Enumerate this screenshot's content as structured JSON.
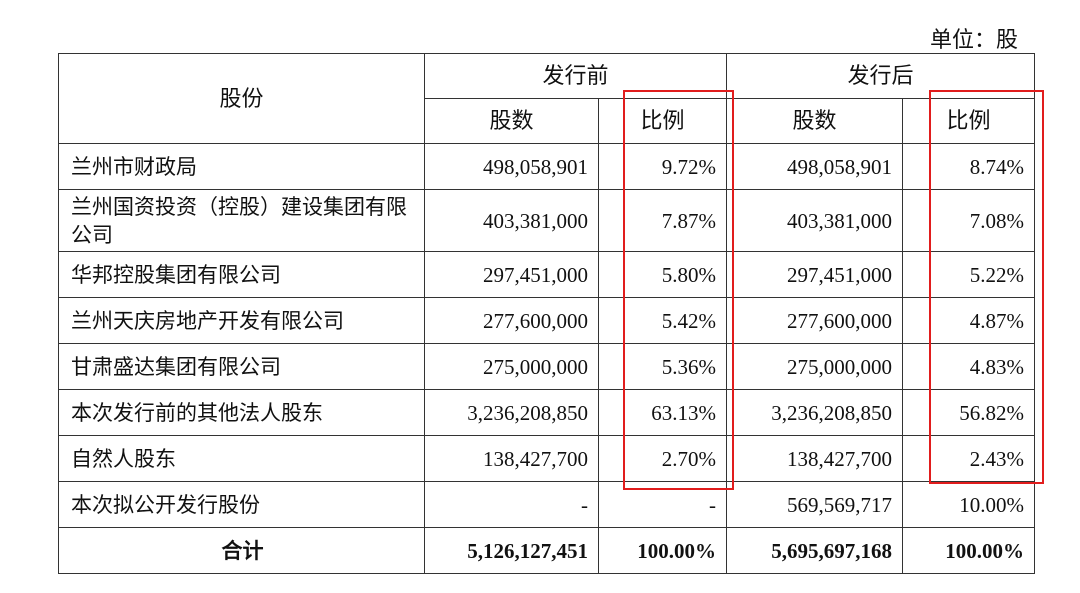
{
  "unit_label": "单位：股",
  "header": {
    "shareholder": "股份",
    "before": "发行前",
    "after": "发行后",
    "shares": "股数",
    "ratio": "比例"
  },
  "rows": [
    {
      "name": "兰州市财政局",
      "before_shares": "498,058,901",
      "before_ratio": "9.72%",
      "after_shares": "498,058,901",
      "after_ratio": "8.74%"
    },
    {
      "name": "兰州国资投资（控股）建设集团有限公司",
      "before_shares": "403,381,000",
      "before_ratio": "7.87%",
      "after_shares": "403,381,000",
      "after_ratio": "7.08%"
    },
    {
      "name": "华邦控股集团有限公司",
      "before_shares": "297,451,000",
      "before_ratio": "5.80%",
      "after_shares": "297,451,000",
      "after_ratio": "5.22%"
    },
    {
      "name": "兰州天庆房地产开发有限公司",
      "before_shares": "277,600,000",
      "before_ratio": "5.42%",
      "after_shares": "277,600,000",
      "after_ratio": "4.87%"
    },
    {
      "name": "甘肃盛达集团有限公司",
      "before_shares": "275,000,000",
      "before_ratio": "5.36%",
      "after_shares": "275,000,000",
      "after_ratio": "4.83%"
    },
    {
      "name": "本次发行前的其他法人股东",
      "before_shares": "3,236,208,850",
      "before_ratio": "63.13%",
      "after_shares": "3,236,208,850",
      "after_ratio": "56.82%"
    },
    {
      "name": "自然人股东",
      "before_shares": "138,427,700",
      "before_ratio": "2.70%",
      "after_shares": "138,427,700",
      "after_ratio": "2.43%"
    },
    {
      "name": "本次拟公开发行股份",
      "before_shares": "-",
      "before_ratio": "-",
      "after_shares": "569,569,717",
      "after_ratio": "10.00%"
    }
  ],
  "total": {
    "name": "合计",
    "before_shares": "5,126,127,451",
    "before_ratio": "100.00%",
    "after_shares": "5,695,697,168",
    "after_ratio": "100.00%"
  },
  "highlight_color": "#e11d1d"
}
